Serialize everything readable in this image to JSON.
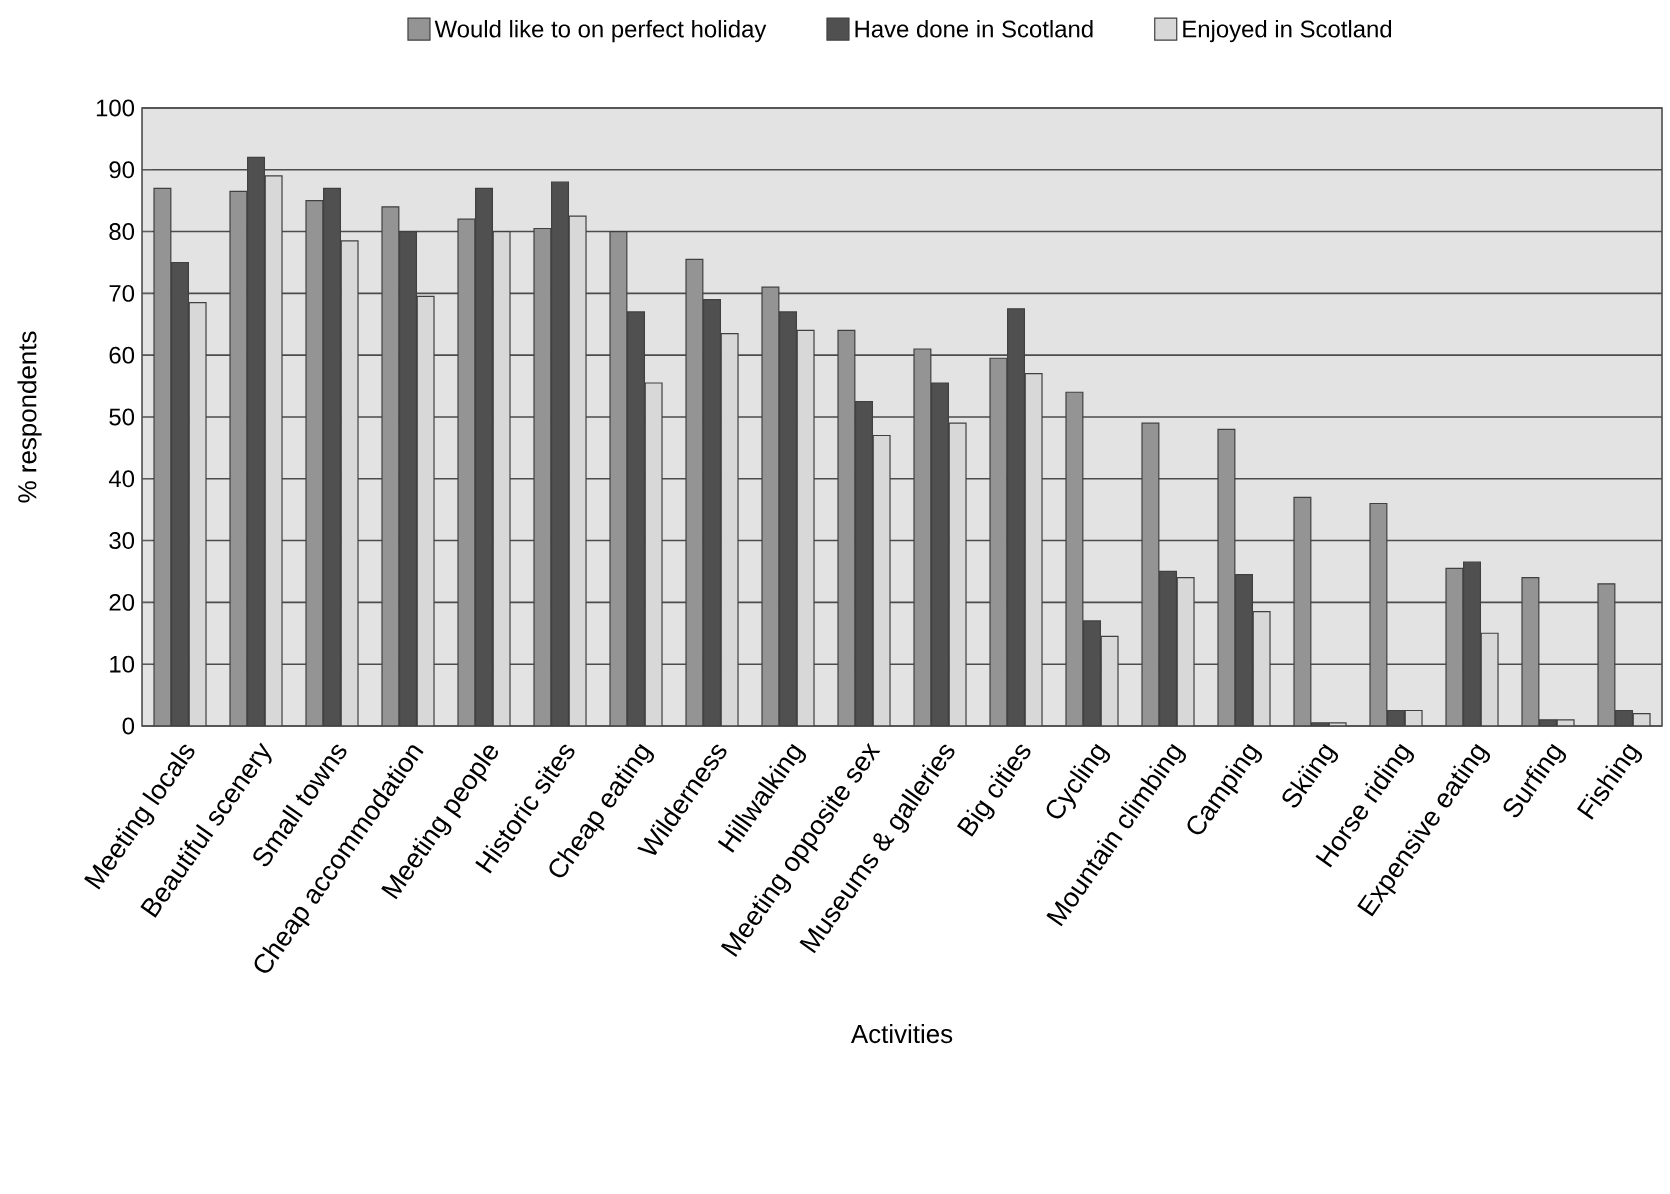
{
  "chart_data": {
    "type": "bar",
    "xlabel": "Activities",
    "ylabel": "% respondents",
    "categories": [
      "Meeting locals",
      "Beautiful scenery",
      "Small towns",
      "Cheap accommodation",
      "Meeting people",
      "Historic sites",
      "Cheap eating",
      "Wilderness",
      "Hillwalking",
      "Meeting opposite sex",
      "Museums & galleries",
      "Big cities",
      "Cycling",
      "Mountain climbing",
      "Camping",
      "Skiing",
      "Horse riding",
      "Expensive eating",
      "Surfing",
      "Fishing"
    ],
    "series": [
      {
        "name": "Would like to on perfect holiday",
        "color": "#949494",
        "values": [
          87,
          86.5,
          85,
          84,
          82,
          80.5,
          80,
          75.5,
          71,
          64,
          61,
          59.5,
          54,
          49,
          48,
          37,
          36,
          25.5,
          24,
          23
        ]
      },
      {
        "name": "Have done in Scotland",
        "color": "#505050",
        "values": [
          75,
          92,
          87,
          80,
          87,
          88,
          67,
          69,
          67,
          52.5,
          55.5,
          67.5,
          17,
          25,
          24.5,
          0.5,
          2.5,
          26.5,
          1,
          2.5
        ]
      },
      {
        "name": "Enjoyed in Scotland",
        "color": "#d8d8d8",
        "values": [
          68.5,
          89,
          78.5,
          69.5,
          80,
          82.5,
          55.5,
          63.5,
          64,
          47,
          49,
          57,
          14.5,
          24,
          18.5,
          0.5,
          2.5,
          15,
          1,
          2
        ]
      }
    ],
    "ylim": [
      0,
      100
    ],
    "yticks": [
      0,
      10,
      20,
      30,
      40,
      50,
      60,
      70,
      80,
      90,
      100
    ],
    "grid": "y",
    "legend": "top"
  }
}
